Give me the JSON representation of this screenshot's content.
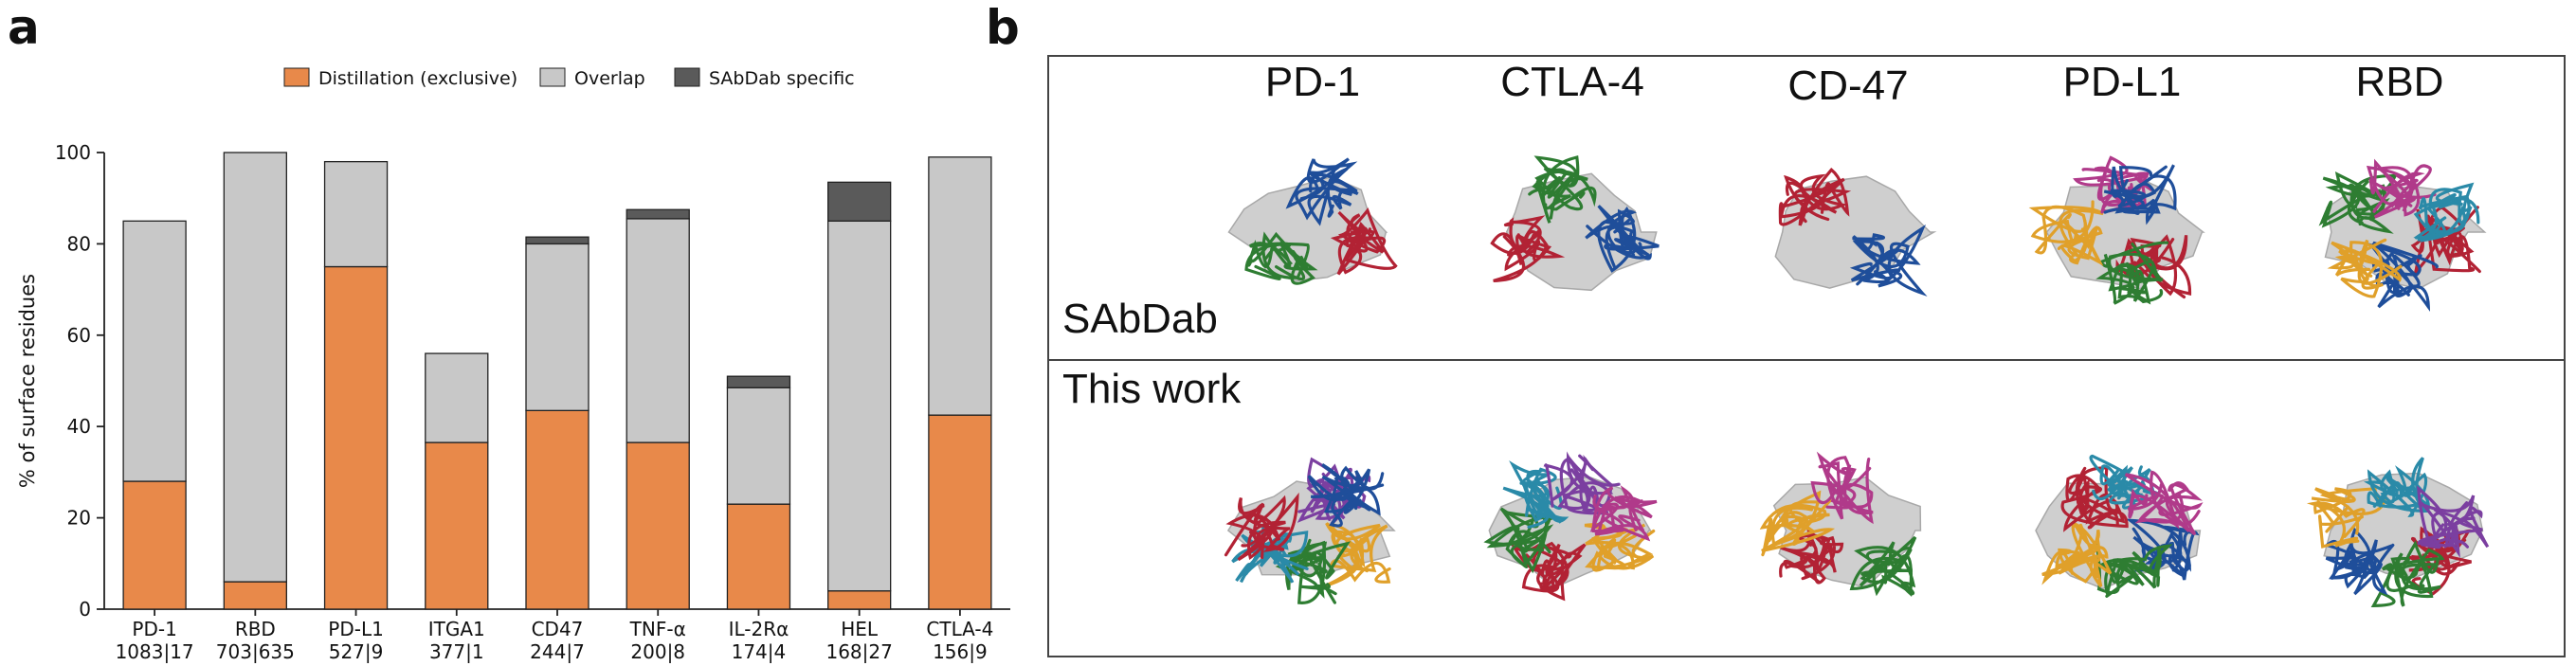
{
  "panel_labels": {
    "a": "a",
    "b": "b"
  },
  "chart_data": {
    "type": "bar",
    "stacked": true,
    "categories": [
      "PD-1",
      "RBD",
      "PD-L1",
      "ITGA1",
      "CD47",
      "TNF-α",
      "IL-2Rα",
      "HEL",
      "CTLA-4"
    ],
    "category_sublabels": [
      "1083|17",
      "703|635",
      "527|9",
      "377|1",
      "244|7",
      "200|8",
      "174|4",
      "168|27",
      "156|9"
    ],
    "series": [
      {
        "name": "Distillation (exclusive)",
        "color": "#E8894A",
        "values": [
          28,
          6,
          75,
          36.5,
          43.5,
          36.5,
          23,
          4,
          42.5
        ]
      },
      {
        "name": "Overlap",
        "color": "#C8C8C8",
        "values": [
          57,
          94,
          23,
          19.5,
          36.5,
          49,
          25.5,
          81,
          56.5
        ]
      },
      {
        "name": "SAbDab specific",
        "color": "#5A5A5A",
        "values": [
          0,
          0,
          0,
          0,
          1.5,
          2,
          2.5,
          8.5,
          0
        ]
      }
    ],
    "ylabel": "% of surface residues",
    "xlabel": "",
    "ylim": [
      0,
      100
    ],
    "yticks": [
      0,
      20,
      40,
      60,
      80,
      100
    ],
    "legend_position": "top",
    "grid": false
  },
  "panel_b": {
    "targets": [
      "PD-1",
      "CTLA-4",
      "CD-47",
      "PD-L1",
      "RBD"
    ],
    "rows": [
      {
        "label": "SAbDab",
        "structures": [
          {
            "name": "pd1-sabdab",
            "chains": [
              "#B22234",
              "#2E7D32",
              "#1F4E9A"
            ]
          },
          {
            "name": "ctla4-sabdab",
            "chains": [
              "#1F4E9A",
              "#B22234",
              "#2E7D32"
            ]
          },
          {
            "name": "cd47-sabdab",
            "chains": [
              "#1F4E9A",
              "#B22234"
            ]
          },
          {
            "name": "pdl1-sabdab",
            "chains": [
              "#B22234",
              "#2E7D32",
              "#E0A02A",
              "#B03A8A",
              "#1F4E9A"
            ]
          },
          {
            "name": "rbd-sabdab",
            "chains": [
              "#B22234",
              "#1F4E9A",
              "#E0A02A",
              "#2E7D32",
              "#B03A8A",
              "#2A8AA8"
            ]
          }
        ]
      },
      {
        "label": "This work",
        "structures": [
          {
            "name": "pd1-thiswork",
            "chains": [
              "#E0A02A",
              "#2E7D32",
              "#2A8AA8",
              "#B22234",
              "#7B3FA0",
              "#1F4E9A"
            ]
          },
          {
            "name": "ctla4-thiswork",
            "chains": [
              "#E0A02A",
              "#B22234",
              "#2E7D32",
              "#2A8AA8",
              "#7B3FA0",
              "#B03A8A"
            ]
          },
          {
            "name": "cd47-thiswork",
            "chains": [
              "#2E7D32",
              "#B22234",
              "#E0A02A",
              "#B03A8A"
            ]
          },
          {
            "name": "pdl1-thiswork",
            "chains": [
              "#1F4E9A",
              "#2E7D32",
              "#E0A02A",
              "#B22234",
              "#2A8AA8",
              "#B03A8A"
            ]
          },
          {
            "name": "rbd-thiswork",
            "chains": [
              "#B22234",
              "#2E7D32",
              "#1F4E9A",
              "#E0A02A",
              "#2A8AA8",
              "#7B3FA0"
            ]
          }
        ]
      }
    ]
  }
}
